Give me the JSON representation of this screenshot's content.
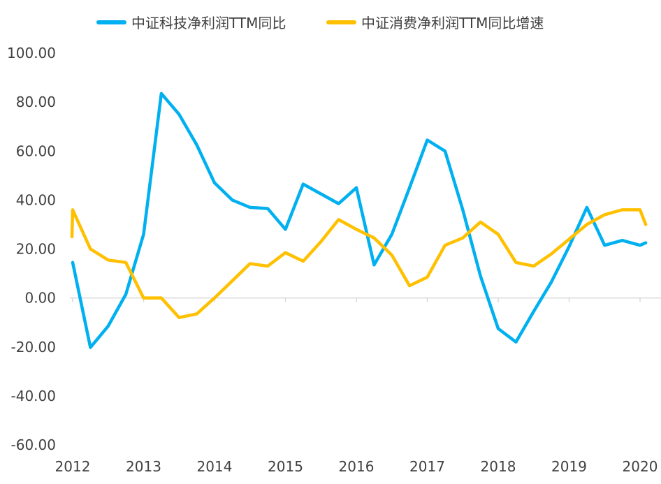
{
  "chart_data": {
    "type": "line",
    "title": "",
    "xlabel": "",
    "ylabel": "",
    "ylim": [
      -60,
      100
    ],
    "y_ticks": [
      "100.00",
      "80.00",
      "60.00",
      "40.00",
      "20.00",
      "0.00",
      "-20.00",
      "-40.00",
      "-60.00"
    ],
    "x_ticks": [
      "2012",
      "2013",
      "2014",
      "2015",
      "2016",
      "2017",
      "2018",
      "2019",
      "2020"
    ],
    "grid": false,
    "legend_position": "top",
    "series": [
      {
        "name": "中证科技净利润TTM同比",
        "color": "#00B0F0",
        "x": [
          2012.0,
          2012.25,
          2012.5,
          2012.75,
          2013.0,
          2013.25,
          2013.5,
          2013.75,
          2014.0,
          2014.25,
          2014.5,
          2014.75,
          2015.0,
          2015.25,
          2015.5,
          2015.75,
          2016.0,
          2016.25,
          2016.5,
          2016.75,
          2017.0,
          2017.25,
          2017.5,
          2017.75,
          2018.0,
          2018.25,
          2018.5,
          2018.75,
          2019.0,
          2019.25,
          2019.5,
          2019.75,
          2020.0,
          2020.08
        ],
        "values": [
          14.5,
          -20.2,
          -11.5,
          1.5,
          26,
          83.5,
          75,
          62.5,
          47,
          40,
          37,
          36.5,
          28,
          46.5,
          42.5,
          38.5,
          45,
          13.5,
          26,
          45,
          64.5,
          60,
          36,
          9,
          -12.5,
          -18,
          -5.5,
          6.5,
          21,
          37,
          21.5,
          23.5,
          21.5,
          22.5
        ]
      },
      {
        "name": "中证消费净利润TTM同比增速",
        "color": "#FFC000",
        "x": [
          2011.99,
          2012.0,
          2012.25,
          2012.5,
          2012.75,
          2013.0,
          2013.25,
          2013.5,
          2013.75,
          2014.0,
          2014.25,
          2014.5,
          2014.75,
          2015.0,
          2015.25,
          2015.5,
          2015.75,
          2016.0,
          2016.25,
          2016.5,
          2016.75,
          2017.0,
          2017.25,
          2017.5,
          2017.75,
          2018.0,
          2018.25,
          2018.5,
          2018.75,
          2019.0,
          2019.25,
          2019.5,
          2019.75,
          2020.0,
          2020.08
        ],
        "values": [
          25,
          36,
          20,
          15.5,
          14.5,
          0,
          0,
          -8,
          -6.5,
          0,
          7,
          14,
          13,
          18.5,
          15,
          23,
          32,
          28,
          24.5,
          17.5,
          5,
          8.5,
          21.5,
          24.5,
          31,
          26,
          14.5,
          13,
          18,
          24,
          30,
          34,
          36,
          36,
          30
        ]
      }
    ]
  }
}
